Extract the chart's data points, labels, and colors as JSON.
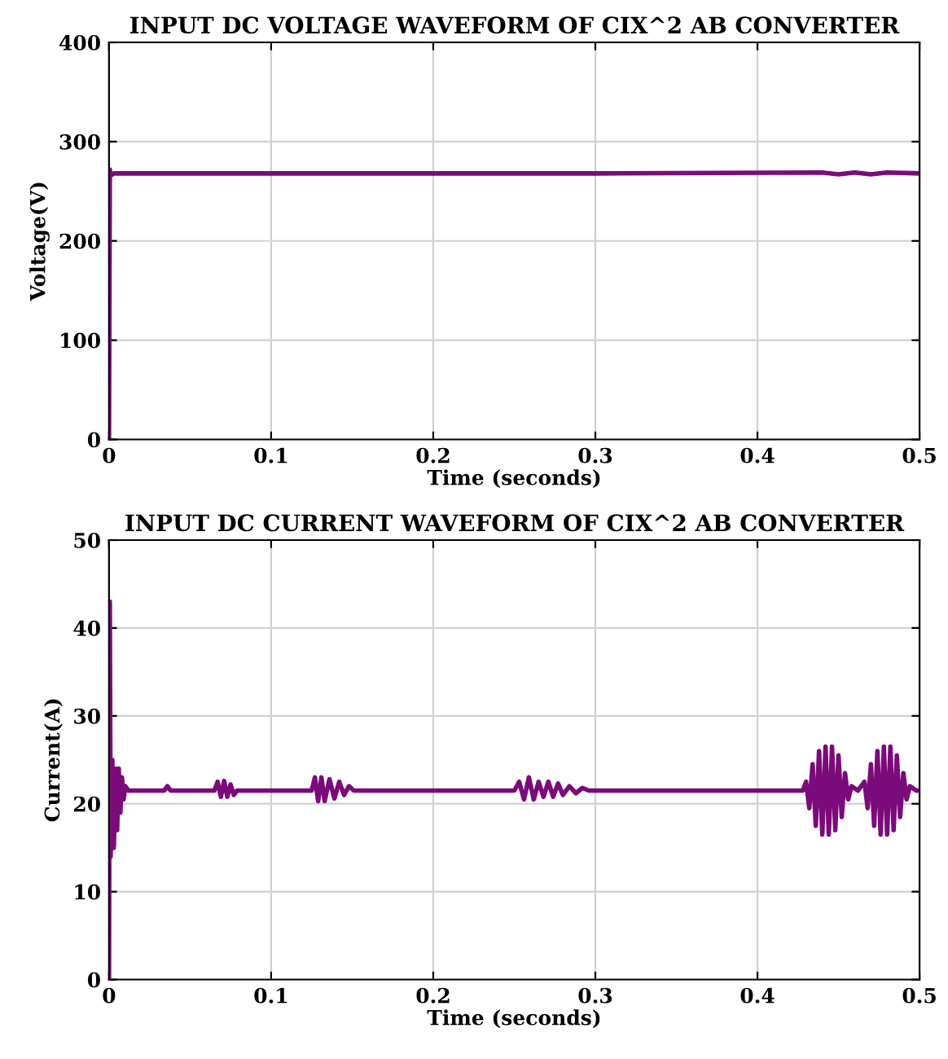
{
  "chart_data": [
    {
      "type": "line",
      "title": "INPUT DC VOLTAGE WAVEFORM OF CIX^2 AB CONVERTER",
      "xlabel": "Time (seconds)",
      "ylabel": "Voltage(V)",
      "xlim": [
        0,
        0.5
      ],
      "ylim": [
        0,
        400
      ],
      "xticks": [
        0,
        0.1,
        0.2,
        0.3,
        0.4,
        0.5
      ],
      "yticks": [
        0,
        100,
        200,
        300,
        400
      ],
      "grid": true,
      "series": [
        {
          "color": "#7b0a7b",
          "x": [
            0,
            0.0005,
            0.001,
            0.003,
            0.1,
            0.2,
            0.3,
            0.44,
            0.45,
            0.46,
            0.47,
            0.48,
            0.5
          ],
          "values": [
            0,
            272,
            266,
            268,
            268,
            268,
            268,
            269,
            267,
            269,
            267,
            269,
            268
          ]
        }
      ]
    },
    {
      "type": "line",
      "title": "INPUT DC CURRENT WAVEFORM OF CIX^2 AB CONVERTER",
      "xlabel": "Time (seconds)",
      "ylabel": "Current(A)",
      "xlim": [
        0,
        0.5
      ],
      "ylim": [
        0,
        50
      ],
      "xticks": [
        0,
        0.1,
        0.2,
        0.3,
        0.4,
        0.5
      ],
      "yticks": [
        0,
        10,
        20,
        30,
        40,
        50
      ],
      "grid": true,
      "series": [
        {
          "color": "#7b0a7b",
          "x": [
            0,
            0.0005,
            0.001,
            0.002,
            0.003,
            0.004,
            0.005,
            0.006,
            0.007,
            0.008,
            0.009,
            0.01,
            0.012,
            0.034,
            0.036,
            0.038,
            0.065,
            0.067,
            0.069,
            0.071,
            0.073,
            0.075,
            0.077,
            0.079,
            0.125,
            0.127,
            0.129,
            0.131,
            0.133,
            0.136,
            0.139,
            0.142,
            0.145,
            0.148,
            0.151,
            0.25,
            0.253,
            0.256,
            0.259,
            0.262,
            0.265,
            0.268,
            0.271,
            0.274,
            0.277,
            0.28,
            0.284,
            0.288,
            0.292,
            0.296,
            0.428,
            0.43,
            0.432,
            0.434,
            0.436,
            0.438,
            0.44,
            0.442,
            0.444,
            0.446,
            0.448,
            0.45,
            0.452,
            0.454,
            0.456,
            0.458,
            0.462,
            0.466,
            0.468,
            0.47,
            0.472,
            0.474,
            0.476,
            0.478,
            0.48,
            0.482,
            0.484,
            0.486,
            0.488,
            0.49,
            0.492,
            0.494,
            0.498,
            0.5
          ],
          "values": [
            0,
            43,
            14,
            25,
            15,
            24,
            17,
            24,
            19,
            23,
            20.5,
            22,
            21.5,
            21.5,
            22,
            21.5,
            21.5,
            22.5,
            20.8,
            22.6,
            20.8,
            22.2,
            21,
            21.5,
            21.5,
            23,
            20.3,
            23,
            20.3,
            22.8,
            20.6,
            22.5,
            21,
            22,
            21.5,
            21.5,
            22.5,
            20.5,
            23,
            20.5,
            22.5,
            20.8,
            22.5,
            20.8,
            22.3,
            21,
            22,
            21.2,
            21.8,
            21.5,
            21.5,
            22.5,
            19.5,
            24.5,
            17.5,
            26,
            16.5,
            26.5,
            16.5,
            26.5,
            17,
            25.5,
            18.5,
            23.5,
            20.5,
            22,
            21.5,
            22.5,
            19.5,
            24.5,
            17.5,
            26,
            16.5,
            26.5,
            16.5,
            26.5,
            17,
            25.5,
            18.5,
            23.5,
            20.5,
            22,
            21.5,
            21.5
          ]
        }
      ]
    }
  ]
}
